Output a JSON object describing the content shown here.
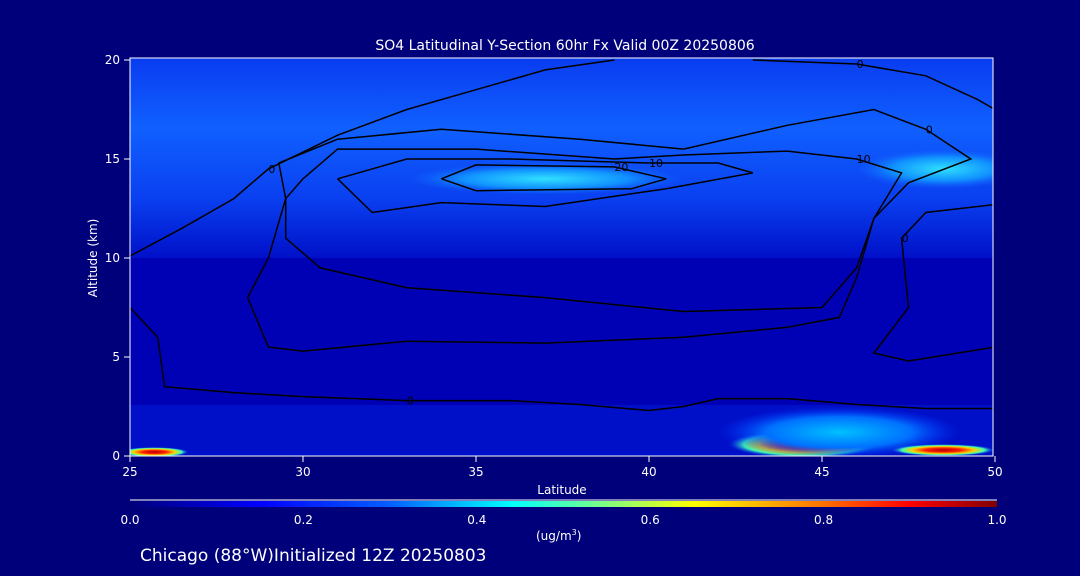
{
  "chart_data": {
    "type": "heatmap",
    "title": "SO4 Latitudinal Y-Section 60hr  Fx Valid 00Z 20250806",
    "xlabel": "Latitude",
    "ylabel": "Altitude (km)",
    "xlim": [
      25,
      50
    ],
    "ylim": [
      0,
      20
    ],
    "xticks": [
      "25",
      "30",
      "35",
      "40",
      "45",
      "50"
    ],
    "yticks": [
      "0",
      "5",
      "10",
      "15",
      "20"
    ],
    "colorbar": {
      "ticks": [
        "0.0",
        "0.2",
        "0.4",
        "0.6",
        "0.8",
        "1.0"
      ],
      "range": [
        0,
        1
      ],
      "units": "(ug/m",
      "units_sup": "3",
      "units_close": ")"
    },
    "footer": "Chicago (88°W)Initialized 12Z 20250803",
    "fill_regions": [
      {
        "lat": 44.5,
        "alt": 0.6,
        "value": 0.85,
        "rlat": 2.2,
        "ralt": 0.7
      },
      {
        "lat": 45.5,
        "alt": 1.2,
        "value": 0.5,
        "rlat": 3.5,
        "ralt": 1.3
      },
      {
        "lat": 25.7,
        "alt": 0.2,
        "value": 0.9,
        "rlat": 1.0,
        "ralt": 0.25
      },
      {
        "lat": 48.5,
        "alt": 0.3,
        "value": 0.7,
        "rlat": 1.5,
        "ralt": 0.3
      },
      {
        "lat": 37,
        "alt": 14,
        "value": 0.35,
        "rlat": 4,
        "ralt": 0.8
      },
      {
        "lat": 48.5,
        "alt": 14.5,
        "value": 0.38,
        "rlat": 2.5,
        "ralt": 1
      }
    ],
    "contours": [
      {
        "level": "0",
        "points": [
          [
            25,
            10.1
          ],
          [
            26.5,
            11.5
          ],
          [
            28,
            13
          ],
          [
            29,
            14.5
          ],
          [
            31,
            16.2
          ],
          [
            33,
            17.5
          ],
          [
            35,
            18.5
          ],
          [
            37,
            19.5
          ],
          [
            39,
            20
          ]
        ]
      },
      {
        "level": "0",
        "points": [
          [
            29.3,
            14.8
          ],
          [
            31,
            16
          ],
          [
            34,
            16.5
          ],
          [
            38,
            16
          ],
          [
            41,
            15.5
          ],
          [
            44,
            16.7
          ],
          [
            46.5,
            17.5
          ],
          [
            48,
            16.5
          ],
          [
            49.3,
            15
          ],
          [
            47.5,
            13.8
          ],
          [
            46.5,
            12
          ],
          [
            46,
            9
          ],
          [
            45.5,
            7
          ],
          [
            44,
            6.5
          ],
          [
            41,
            6
          ],
          [
            37,
            5.7
          ],
          [
            33,
            5.8
          ],
          [
            30,
            5.3
          ],
          [
            29,
            5.5
          ],
          [
            28.4,
            8
          ],
          [
            29,
            10
          ],
          [
            29.5,
            13
          ],
          [
            29.3,
            14.8
          ]
        ]
      },
      {
        "level": "10",
        "points": [
          [
            30,
            14
          ],
          [
            31,
            15.5
          ],
          [
            35,
            15.5
          ],
          [
            39,
            15
          ],
          [
            41,
            15.2
          ],
          [
            44,
            15.4
          ],
          [
            46,
            15
          ],
          [
            47.3,
            14.3
          ],
          [
            46.5,
            12
          ],
          [
            46,
            9.5
          ],
          [
            45,
            7.5
          ],
          [
            41,
            7.3
          ],
          [
            37,
            8
          ],
          [
            33,
            8.5
          ],
          [
            30.5,
            9.5
          ],
          [
            29.5,
            11
          ],
          [
            29.5,
            13
          ],
          [
            30,
            14
          ]
        ]
      },
      {
        "level": "10",
        "points": [
          [
            31,
            14
          ],
          [
            33,
            15
          ],
          [
            36,
            15
          ],
          [
            40,
            14.8
          ],
          [
            42,
            14.8
          ],
          [
            43,
            14.3
          ],
          [
            40.5,
            13.5
          ],
          [
            37,
            12.6
          ],
          [
            34,
            12.8
          ],
          [
            32,
            12.3
          ],
          [
            31,
            14
          ]
        ]
      },
      {
        "level": "20",
        "points": [
          [
            34,
            14
          ],
          [
            35,
            14.7
          ],
          [
            39,
            14.6
          ],
          [
            40.5,
            14
          ],
          [
            39.5,
            13.5
          ],
          [
            35,
            13.4
          ],
          [
            34,
            14
          ]
        ]
      },
      {
        "level": "0",
        "points": [
          [
            25,
            7.5
          ],
          [
            25.8,
            6
          ],
          [
            26,
            3.5
          ],
          [
            28,
            3.2
          ],
          [
            30,
            3
          ],
          [
            33,
            2.8
          ],
          [
            36,
            2.8
          ],
          [
            38,
            2.6
          ],
          [
            40,
            2.3
          ],
          [
            41,
            2.5
          ],
          [
            42,
            2.9
          ],
          [
            44,
            2.9
          ],
          [
            46,
            2.6
          ],
          [
            48,
            2.4
          ],
          [
            50,
            2.4
          ]
        ]
      },
      {
        "level": "0",
        "points": [
          [
            50,
            12.7
          ],
          [
            48,
            12.3
          ],
          [
            47.3,
            11
          ],
          [
            47.5,
            7.5
          ],
          [
            46.5,
            5.2
          ],
          [
            47.5,
            4.8
          ],
          [
            50,
            5.5
          ]
        ]
      },
      {
        "level": "0",
        "points": [
          [
            43,
            20
          ],
          [
            46,
            19.8
          ],
          [
            48,
            19.2
          ],
          [
            49.5,
            18
          ],
          [
            50,
            17.5
          ]
        ]
      }
    ]
  }
}
